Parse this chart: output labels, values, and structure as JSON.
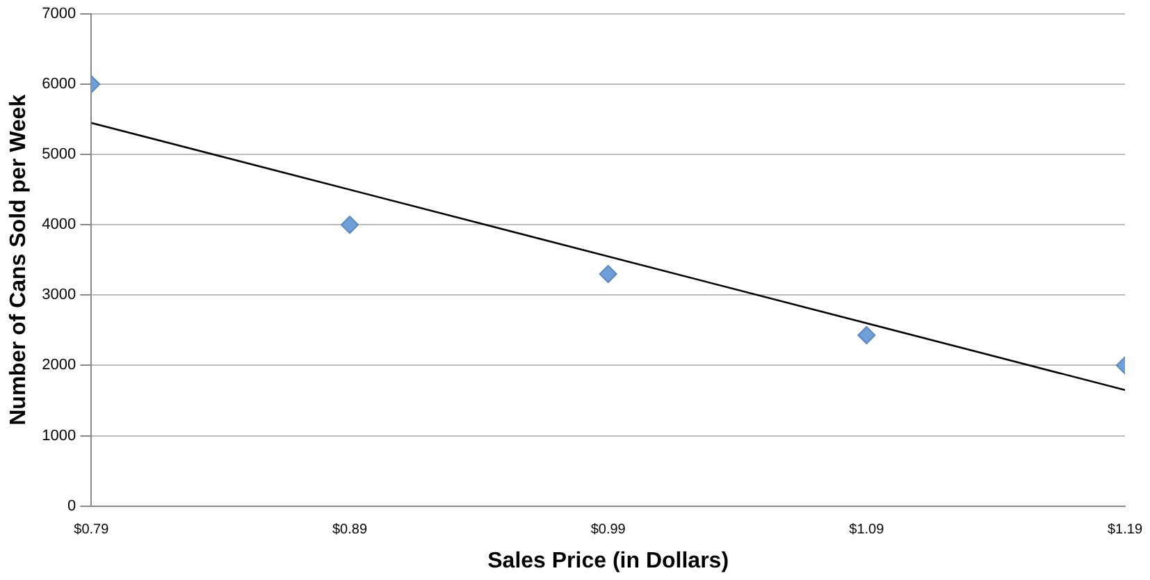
{
  "chart_data": {
    "type": "scatter",
    "xlabel": "Sales Price (in Dollars)",
    "ylabel": "Number of Cans Sold per Week",
    "x": [
      0.79,
      0.89,
      0.99,
      1.09,
      1.19
    ],
    "series": [
      {
        "type": "scatter",
        "color": "#6f9fd8",
        "marker": "diamond",
        "values": [
          6000,
          4000,
          3300,
          2430,
          2000
        ]
      },
      {
        "type": "line",
        "color": "#000000",
        "marker": "none",
        "line_style": "solid",
        "x": [
          0.79,
          1.19
        ],
        "values": [
          5450,
          1650
        ]
      }
    ],
    "xlim": [
      0.79,
      1.19
    ],
    "xticks": [
      {
        "value": 0.79,
        "label": "$0.79"
      },
      {
        "value": 0.89,
        "label": "$0.89"
      },
      {
        "value": 0.99,
        "label": "$0.99"
      },
      {
        "value": 1.09,
        "label": "$1.09"
      },
      {
        "value": 1.19,
        "label": "$1.19"
      }
    ],
    "ylim": [
      0,
      7000
    ],
    "yticks": [
      0,
      1000,
      2000,
      3000,
      4000,
      5000,
      6000,
      7000
    ],
    "grid": "y",
    "legend": false
  }
}
